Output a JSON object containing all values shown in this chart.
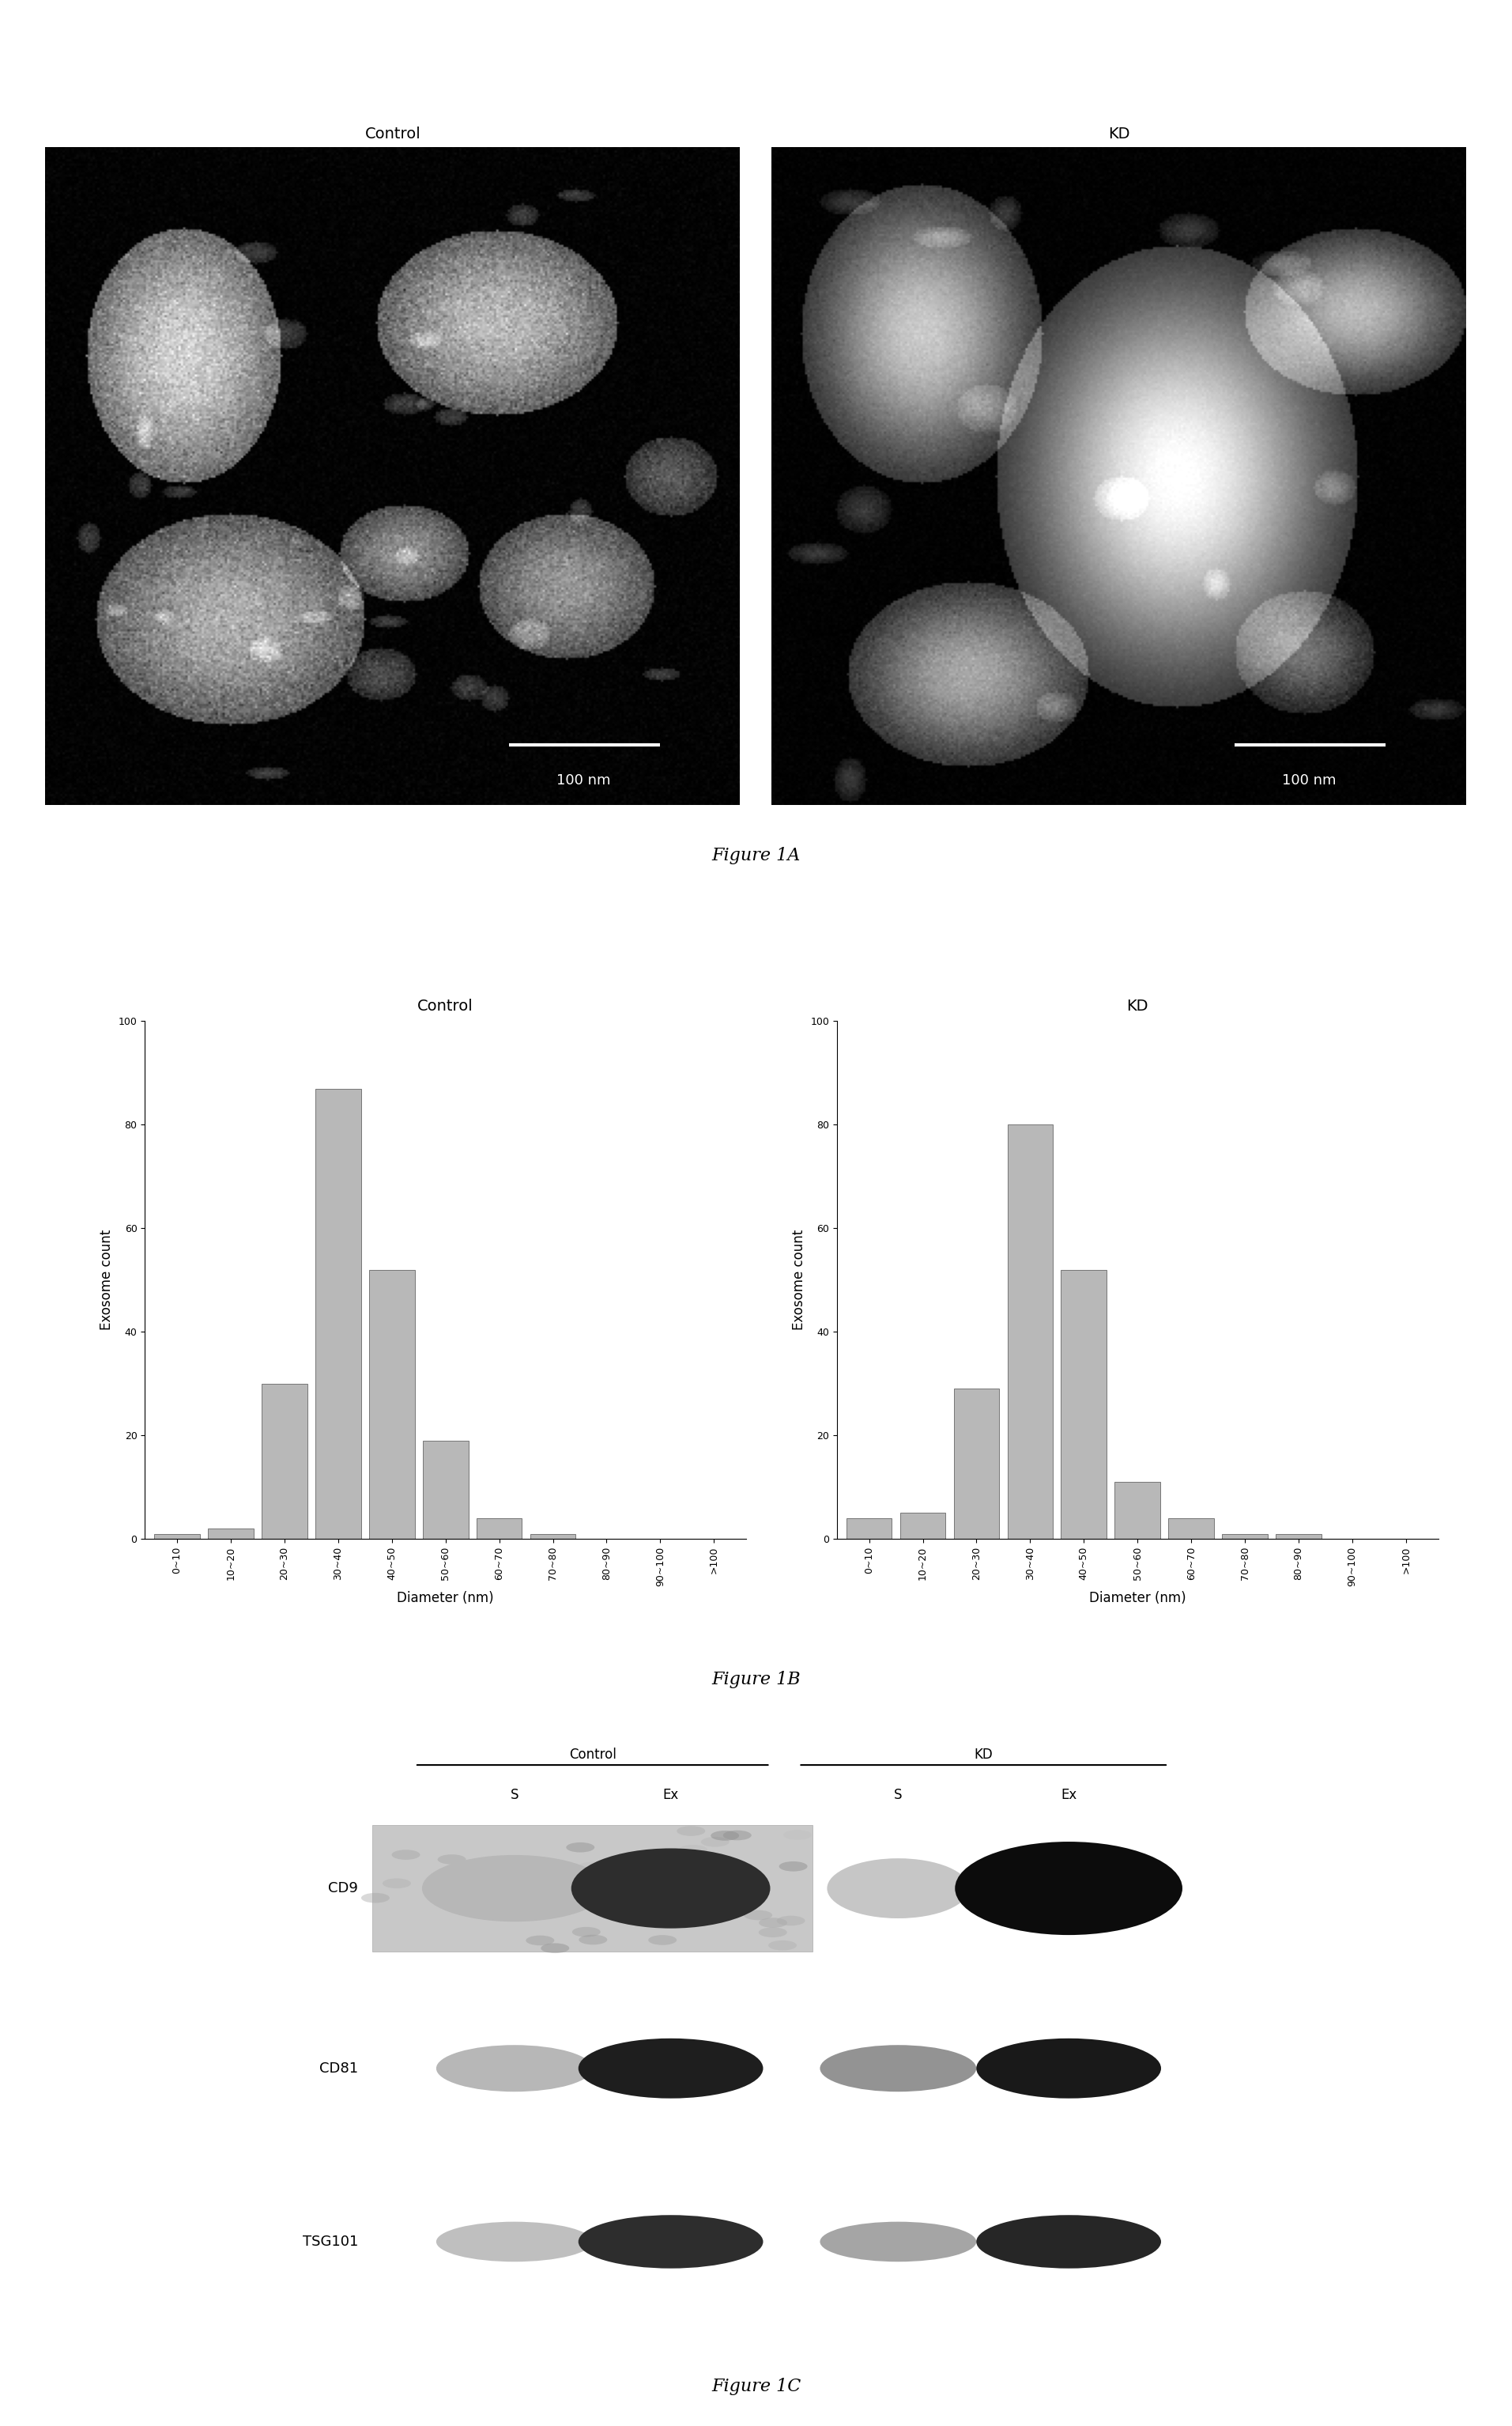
{
  "fig_width": 19.13,
  "fig_height": 30.68,
  "background_color": "#ffffff",
  "panel_A": {
    "control_label": "Control",
    "kd_label": "KD",
    "scalebar_label": "100 nm",
    "caption": "Figure 1A"
  },
  "panel_B": {
    "control_label": "Control",
    "kd_label": "KD",
    "xlabel": "Diameter (nm)",
    "ylabel": "Exosome count",
    "caption": "Figure 1B",
    "ylim": [
      0,
      100
    ],
    "yticks": [
      0,
      20,
      40,
      60,
      80,
      100
    ],
    "tick_labels": [
      "0~10",
      "10~20",
      "20~30",
      "30~40",
      "40~50",
      "50~60",
      "60~70",
      "70~80",
      "80~90",
      "90~100",
      ">100"
    ],
    "control_values": [
      1,
      2,
      30,
      87,
      52,
      19,
      4,
      1,
      0,
      0,
      0
    ],
    "kd_values": [
      4,
      5,
      29,
      80,
      52,
      11,
      4,
      1,
      1,
      0,
      0
    ],
    "bar_color": "#b8b8b8",
    "bar_edgecolor": "#666666"
  },
  "panel_C": {
    "caption": "Figure 1C",
    "overline_label1": "Control",
    "overline_label2": "KD",
    "col_labels": [
      "S",
      "Ex",
      "S",
      "Ex"
    ],
    "row_labels": [
      "CD9",
      "CD81",
      "TSG101"
    ],
    "cd9_intensities": [
      0.28,
      0.82,
      0.22,
      0.95
    ],
    "cd81_intensities": [
      0.28,
      0.88,
      0.42,
      0.9
    ],
    "tsg101_intensities": [
      0.25,
      0.82,
      0.35,
      0.85
    ]
  }
}
